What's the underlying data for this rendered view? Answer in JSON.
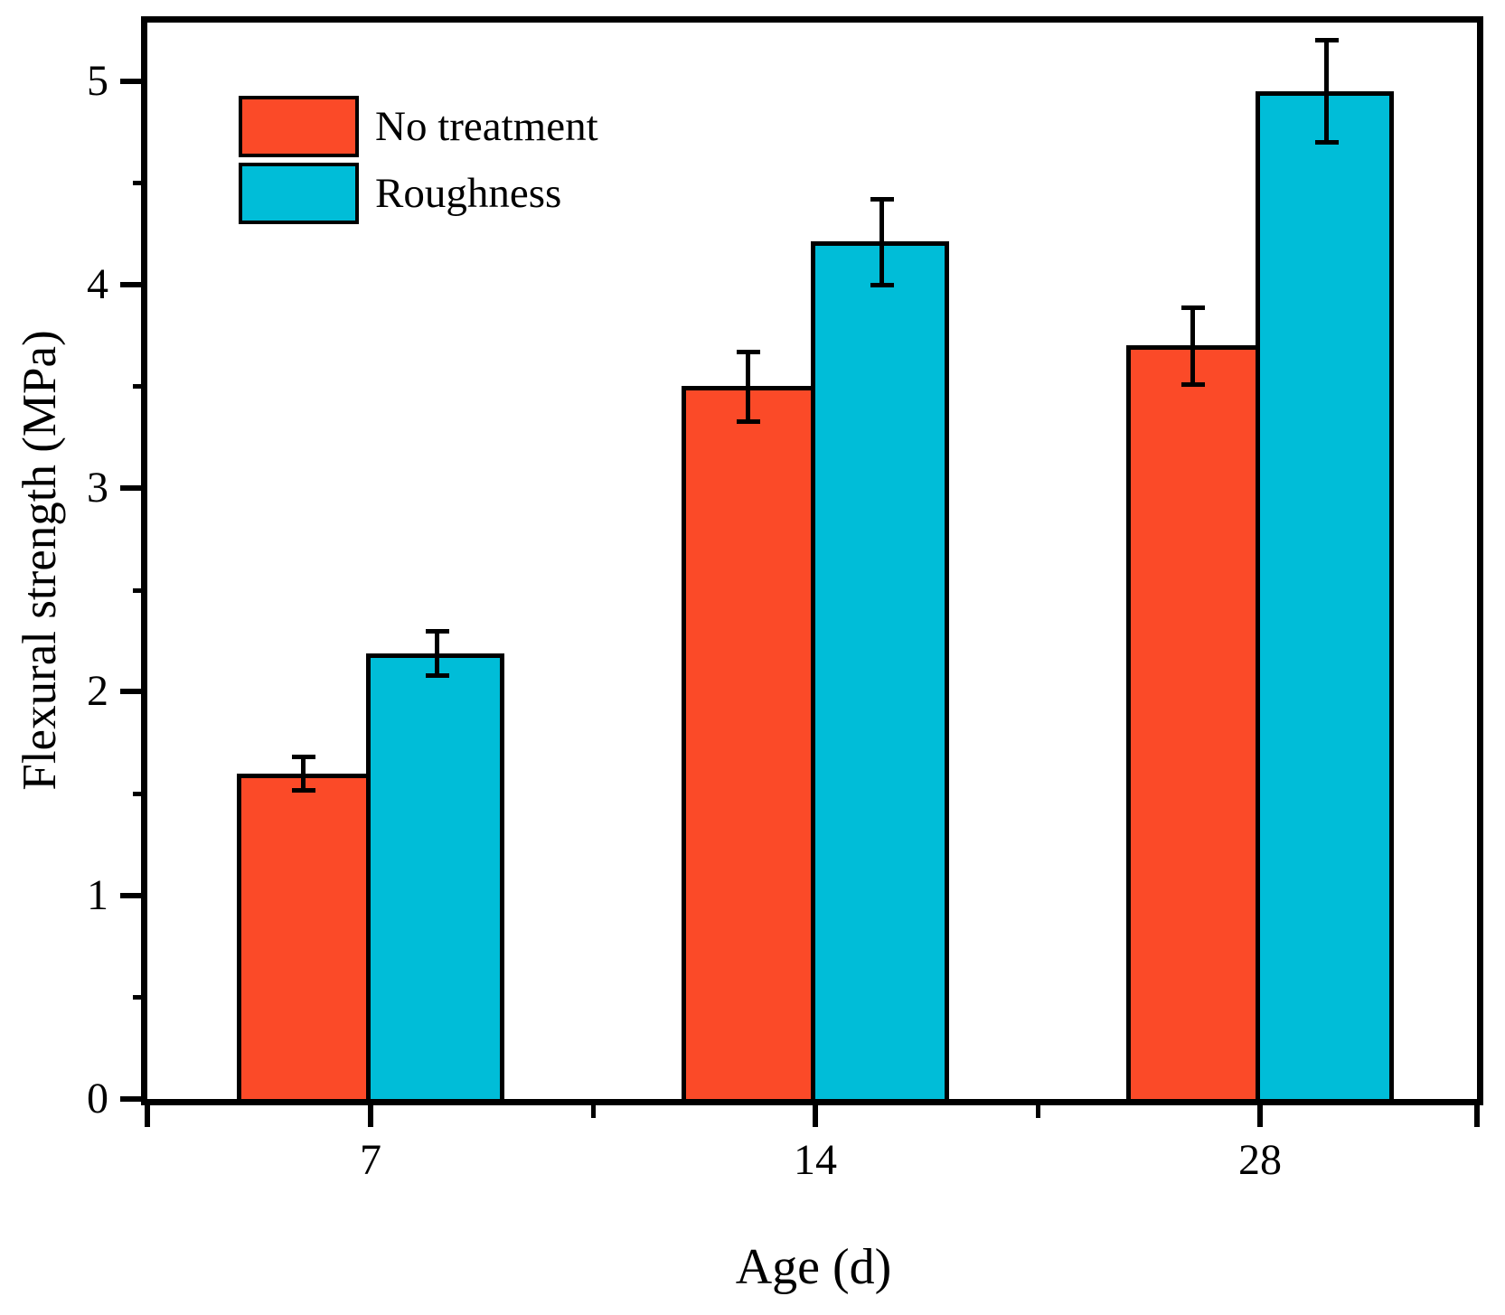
{
  "chart_data": {
    "type": "bar",
    "title": "",
    "categories": [
      "7",
      "14",
      "28"
    ],
    "series": [
      {
        "name": "No treatment",
        "color": "#FB4A28",
        "values": [
          1.6,
          3.5,
          3.7
        ],
        "errors": [
          0.08,
          0.17,
          0.19
        ]
      },
      {
        "name": "Roughness",
        "color": "#00BDD8",
        "values": [
          2.19,
          4.21,
          4.95
        ],
        "errors": [
          0.11,
          0.21,
          0.25
        ]
      }
    ],
    "xlabel": "Age (d)",
    "ylabel": "Flexural strength (MPa)",
    "ylim": [
      0,
      5.29
    ],
    "y_major_ticks": [
      0,
      1,
      2,
      3,
      4,
      5
    ],
    "y_minor_ticks": [
      0.5,
      1.5,
      2.5,
      3.5,
      4.5
    ],
    "legend_position": "top-left",
    "grid": false,
    "axis_color": "#000000",
    "error_bar_color": "#000000"
  }
}
